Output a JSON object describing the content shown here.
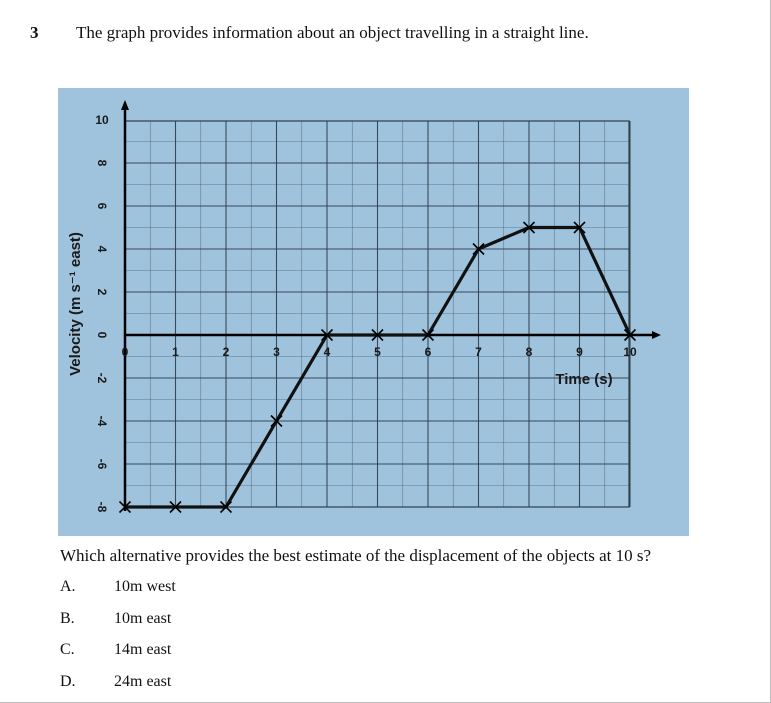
{
  "question": {
    "number": "3",
    "text": "The graph provides information about an object travelling in a straight line.",
    "prompt": "Which alternative provides the best estimate of the displacement of the objects at 10 s?",
    "options": [
      {
        "letter": "A.",
        "text": "10m west"
      },
      {
        "letter": "B.",
        "text": "10m east"
      },
      {
        "letter": "C.",
        "text": "14m east"
      },
      {
        "letter": "D.",
        "text": "24m east"
      }
    ]
  },
  "chart_data": {
    "type": "line",
    "xlabel": "Time (s)",
    "ylabel": "Velocity (m s⁻¹ east)",
    "xlim": [
      0,
      10
    ],
    "ylim": [
      -8,
      10
    ],
    "x_ticks": [
      "0",
      "1",
      "2",
      "3",
      "4",
      "5",
      "6",
      "7",
      "8",
      "9",
      "10"
    ],
    "y_ticks": [
      "10",
      "8",
      "6",
      "4",
      "2",
      "0",
      "-2",
      "-4",
      "-6",
      "-8"
    ],
    "grid": true,
    "background_color": "#9fc3dd",
    "line_color": "#111111",
    "series": [
      {
        "x": [
          0,
          1,
          2,
          3,
          4,
          5,
          6,
          7,
          8,
          9,
          10
        ],
        "values": [
          -8,
          -8,
          -8,
          -4,
          0,
          0,
          0,
          4,
          5,
          5,
          0
        ]
      }
    ]
  }
}
